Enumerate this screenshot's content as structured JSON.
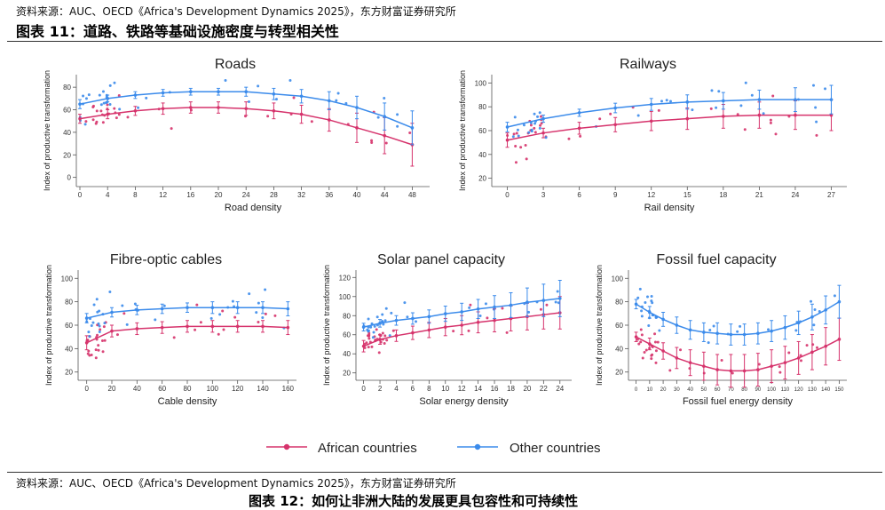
{
  "header": {
    "source_top": "资料来源：AUC、OECD《Africa's Development Dynamics 2025》，东方财富证券研究所",
    "figure_title": "图表 11：道路、铁路等基础设施密度与转型相关性"
  },
  "footer": {
    "source_bottom": "资料来源：AUC、OECD《Africa's Development Dynamics 2025》，东方财富证券研究所",
    "next_title": "图表 12：如何让非洲大陆的发展更具包容性和可持续性"
  },
  "legend": {
    "african_label": "African countries",
    "other_label": "Other countries",
    "placement": "bottom-center"
  },
  "colors": {
    "african": "#d6336c",
    "other": "#3b8beb"
  },
  "chart_data": [
    {
      "id": "roads",
      "type": "line",
      "title": "Roads",
      "xlabel": "Road density",
      "ylabel": "Index of productive transformation",
      "xticks": [
        "0",
        "4",
        "8",
        "12",
        "16",
        "20",
        "24",
        "28",
        "32",
        "36",
        "40",
        "44",
        "48"
      ],
      "yticks": [
        "0",
        "20",
        "40",
        "60",
        "80"
      ],
      "xlim": [
        0,
        50
      ],
      "ylim": [
        -5,
        88
      ],
      "series": [
        {
          "name": "African countries",
          "x": [
            0,
            4,
            8,
            12,
            16,
            20,
            24,
            28,
            32,
            36,
            40,
            44,
            48
          ],
          "values": [
            52,
            56,
            59,
            61,
            62,
            62,
            61,
            59,
            56,
            51,
            44,
            37,
            29
          ],
          "err": [
            4,
            4,
            4,
            5,
            5,
            5,
            6,
            7,
            8,
            10,
            13,
            16,
            19
          ]
        },
        {
          "name": "Other countries",
          "x": [
            0,
            4,
            8,
            12,
            16,
            20,
            24,
            28,
            32,
            36,
            40,
            44,
            48
          ],
          "values": [
            65,
            70,
            73,
            75,
            76,
            76,
            76,
            74,
            72,
            68,
            62,
            54,
            44
          ],
          "err": [
            4,
            3,
            3,
            3,
            3,
            3,
            4,
            5,
            6,
            8,
            10,
            12,
            15
          ]
        }
      ]
    },
    {
      "id": "railways",
      "type": "line",
      "title": "Railways",
      "xlabel": "Rail density",
      "ylabel": "Index of productive transformation",
      "xticks": [
        "0",
        "3",
        "6",
        "9",
        "12",
        "15",
        "18",
        "21",
        "24",
        "27"
      ],
      "yticks": [
        "20",
        "40",
        "60",
        "80",
        "100"
      ],
      "xlim": [
        -1,
        28
      ],
      "ylim": [
        16,
        104
      ],
      "series": [
        {
          "name": "African countries",
          "x": [
            0,
            3,
            6,
            9,
            12,
            15,
            18,
            21,
            24,
            27
          ],
          "values": [
            52,
            58,
            62,
            65,
            68,
            70,
            72,
            73,
            73,
            73
          ],
          "err": [
            6,
            4,
            5,
            6,
            8,
            9,
            10,
            11,
            12,
            13
          ]
        },
        {
          "name": "Other countries",
          "x": [
            0,
            3,
            6,
            9,
            12,
            15,
            18,
            21,
            24,
            27
          ],
          "values": [
            63,
            70,
            75,
            79,
            82,
            84,
            85,
            86,
            86,
            86
          ],
          "err": [
            4,
            3,
            3,
            4,
            5,
            6,
            7,
            8,
            10,
            12
          ]
        }
      ]
    },
    {
      "id": "fibre",
      "type": "line",
      "title": "Fibre-optic cables",
      "xlabel": "Cable density",
      "ylabel": "Index of productive transformation",
      "xticks": [
        "0",
        "20",
        "40",
        "60",
        "80",
        "100",
        "120",
        "140",
        "160"
      ],
      "yticks": [
        "20",
        "40",
        "60",
        "80",
        "100"
      ],
      "xlim": [
        -4,
        164
      ],
      "ylim": [
        16,
        104
      ],
      "series": [
        {
          "name": "African countries",
          "x": [
            0,
            20,
            40,
            60,
            80,
            100,
            120,
            140,
            160
          ],
          "values": [
            45,
            55,
            57,
            58,
            59,
            59,
            59,
            59,
            58
          ],
          "err": [
            6,
            5,
            5,
            5,
            5,
            5,
            5,
            5,
            6
          ]
        },
        {
          "name": "Other countries",
          "x": [
            0,
            20,
            40,
            60,
            80,
            100,
            120,
            140,
            160
          ],
          "values": [
            66,
            71,
            73,
            74,
            75,
            75,
            75,
            75,
            74
          ],
          "err": [
            4,
            4,
            4,
            4,
            4,
            5,
            5,
            5,
            6
          ]
        }
      ]
    },
    {
      "id": "solar",
      "type": "line",
      "title": "Solar panel capacity",
      "xlabel": "Solar energy density",
      "ylabel": "Index of productive transformation",
      "xticks": [
        "0",
        "2",
        "4",
        "6",
        "8",
        "10",
        "12",
        "14",
        "16",
        "18",
        "20",
        "22",
        "24"
      ],
      "yticks": [
        "20",
        "40",
        "60",
        "80",
        "100",
        "120"
      ],
      "xlim": [
        -0.5,
        25
      ],
      "ylim": [
        16,
        124
      ],
      "series": [
        {
          "name": "African countries",
          "x": [
            0,
            2,
            4,
            6,
            8,
            10,
            12,
            14,
            16,
            18,
            20,
            22,
            24
          ],
          "values": [
            48,
            55,
            59,
            62,
            65,
            68,
            70,
            73,
            75,
            77,
            79,
            81,
            83
          ],
          "err": [
            6,
            5,
            6,
            7,
            8,
            9,
            10,
            11,
            12,
            13,
            14,
            15,
            17
          ]
        },
        {
          "name": "Other countries",
          "x": [
            0,
            2,
            4,
            6,
            8,
            10,
            12,
            14,
            16,
            18,
            20,
            22,
            24
          ],
          "values": [
            68,
            72,
            75,
            77,
            79,
            82,
            84,
            87,
            89,
            91,
            94,
            96,
            98
          ],
          "err": [
            4,
            4,
            5,
            6,
            7,
            8,
            9,
            10,
            12,
            13,
            15,
            17,
            19
          ]
        }
      ]
    },
    {
      "id": "fossil",
      "type": "line",
      "title": "Fossil fuel capacity",
      "xlabel": "Fossil fuel energy density",
      "ylabel": "Index of productive transformation",
      "xticks": [
        "0",
        "10",
        "20",
        "30",
        "40",
        "50",
        "60",
        "70",
        "80",
        "90",
        "100",
        "110",
        "120",
        "130",
        "140",
        "150"
      ],
      "yticks": [
        "20",
        "40",
        "60",
        "80",
        "100"
      ],
      "xlim": [
        -3,
        153
      ],
      "ylim": [
        16,
        104
      ],
      "series": [
        {
          "name": "African countries",
          "x": [
            0,
            10,
            20,
            30,
            40,
            50,
            60,
            70,
            80,
            90,
            100,
            110,
            120,
            130,
            140,
            150
          ],
          "values": [
            50,
            44,
            38,
            32,
            28,
            25,
            22,
            21,
            21,
            22,
            25,
            28,
            32,
            37,
            42,
            48
          ],
          "err": [
            4,
            5,
            7,
            9,
            11,
            12,
            13,
            14,
            14,
            14,
            14,
            14,
            14,
            15,
            16,
            18
          ]
        },
        {
          "name": "Other countries",
          "x": [
            0,
            10,
            20,
            30,
            40,
            50,
            60,
            70,
            80,
            90,
            100,
            110,
            120,
            130,
            140,
            150
          ],
          "values": [
            78,
            71,
            65,
            60,
            56,
            54,
            53,
            52,
            52,
            53,
            55,
            58,
            62,
            67,
            73,
            80
          ],
          "err": [
            4,
            5,
            6,
            7,
            8,
            8,
            9,
            9,
            9,
            9,
            9,
            10,
            10,
            11,
            12,
            14
          ]
        }
      ]
    }
  ]
}
